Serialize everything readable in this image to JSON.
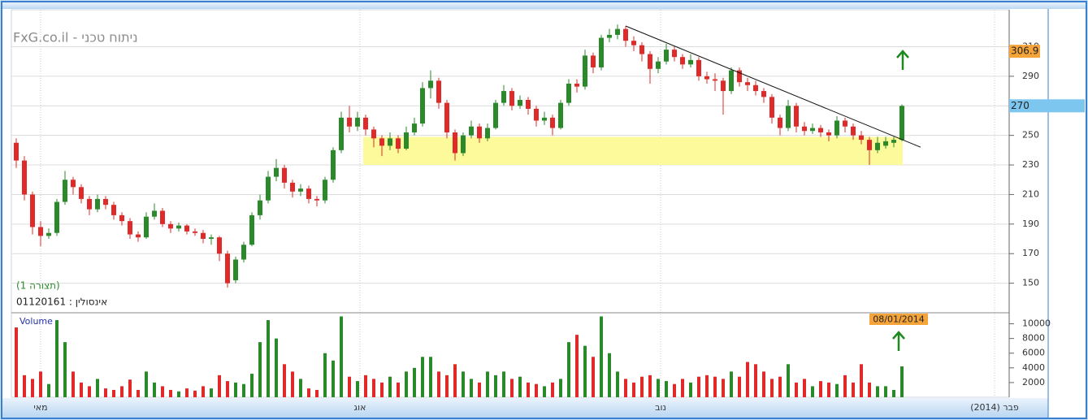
{
  "chart_data": {
    "type": "candlestick",
    "title": "FxG.co.il - ניתוח טכני",
    "subtitle": "(תצורה 1)",
    "instrument": "01120161 : אינסולין",
    "volume_label": "Volume",
    "date_tag": "08/01/2014",
    "up_color": "#2a8a2a",
    "down_color": "#e02a2a",
    "open": [
      245,
      233,
      210,
      188,
      182,
      184,
      205,
      220,
      215,
      207,
      200,
      207,
      203,
      196,
      192,
      183,
      181,
      195,
      199,
      190,
      187,
      189,
      185,
      184,
      180,
      181,
      170,
      152,
      166,
      176,
      196,
      206,
      222,
      228,
      218,
      212,
      214,
      207,
      206,
      220,
      240,
      262,
      256,
      262,
      254,
      248,
      243,
      248,
      241,
      252,
      258,
      282,
      287,
      272,
      252,
      238,
      250,
      256,
      248,
      255,
      272,
      280,
      270,
      274,
      268,
      260,
      262,
      255,
      272,
      285,
      283,
      304,
      296,
      316,
      318,
      322,
      314,
      311,
      305,
      295,
      300,
      308,
      303,
      298,
      301,
      290,
      288,
      287,
      280,
      294,
      286,
      284,
      280,
      276,
      262,
      255,
      270,
      256,
      253,
      255,
      252,
      250,
      260,
      256,
      250,
      247,
      240,
      243,
      245,
      247
    ],
    "close": [
      233,
      210,
      188,
      182,
      184,
      205,
      220,
      215,
      207,
      200,
      207,
      203,
      196,
      192,
      183,
      181,
      195,
      199,
      190,
      187,
      189,
      185,
      184,
      180,
      181,
      170,
      150,
      166,
      176,
      196,
      206,
      222,
      228,
      218,
      212,
      214,
      207,
      206,
      220,
      240,
      262,
      256,
      262,
      254,
      248,
      243,
      248,
      241,
      252,
      258,
      282,
      287,
      272,
      252,
      238,
      250,
      256,
      248,
      255,
      272,
      280,
      270,
      274,
      268,
      260,
      262,
      255,
      272,
      285,
      283,
      304,
      296,
      316,
      318,
      322,
      314,
      311,
      305,
      295,
      300,
      308,
      303,
      298,
      301,
      290,
      288,
      287,
      280,
      294,
      286,
      284,
      280,
      276,
      262,
      255,
      270,
      256,
      253,
      255,
      252,
      250,
      260,
      256,
      250,
      247,
      240,
      245,
      246,
      247,
      270
    ],
    "high": [
      248,
      236,
      212,
      192,
      187,
      207,
      226,
      222,
      217,
      209,
      210,
      209,
      205,
      198,
      194,
      185,
      198,
      204,
      201,
      192,
      191,
      190,
      187,
      186,
      183,
      182,
      172,
      168,
      178,
      198,
      210,
      226,
      234,
      230,
      220,
      217,
      216,
      209,
      222,
      242,
      266,
      270,
      266,
      264,
      256,
      250,
      252,
      250,
      256,
      262,
      286,
      294,
      289,
      274,
      254,
      252,
      260,
      258,
      258,
      274,
      284,
      282,
      277,
      276,
      270,
      266,
      264,
      274,
      288,
      288,
      308,
      306,
      318,
      322,
      325,
      324,
      317,
      313,
      307,
      303,
      312,
      310,
      305,
      305,
      303,
      293,
      292,
      289,
      296,
      296,
      289,
      287,
      282,
      278,
      264,
      274,
      272,
      259,
      258,
      257,
      254,
      263,
      262,
      258,
      253,
      249,
      249,
      249,
      249,
      271
    ],
    "low": [
      228,
      206,
      183,
      175,
      180,
      182,
      203,
      210,
      204,
      196,
      198,
      200,
      193,
      189,
      180,
      178,
      180,
      193,
      188,
      184,
      185,
      183,
      182,
      177,
      176,
      165,
      147,
      150,
      164,
      175,
      193,
      204,
      219,
      214,
      208,
      209,
      204,
      202,
      204,
      218,
      238,
      252,
      253,
      250,
      242,
      236,
      240,
      238,
      240,
      250,
      256,
      275,
      268,
      248,
      233,
      236,
      248,
      245,
      246,
      254,
      270,
      267,
      268,
      264,
      256,
      257,
      250,
      254,
      270,
      279,
      281,
      292,
      294,
      313,
      315,
      310,
      307,
      300,
      285,
      292,
      298,
      300,
      295,
      296,
      287,
      285,
      280,
      264,
      278,
      283,
      280,
      277,
      272,
      258,
      250,
      253,
      252,
      250,
      251,
      249,
      246,
      248,
      252,
      247,
      244,
      230,
      238,
      241,
      242,
      246
    ],
    "volume": [
      9500,
      3000,
      2500,
      3500,
      1800,
      10500,
      7500,
      3500,
      2000,
      1500,
      2500,
      1200,
      1000,
      1500,
      2400,
      1000,
      3500,
      2000,
      1500,
      1000,
      800,
      1200,
      900,
      1500,
      1200,
      3000,
      2200,
      2000,
      1800,
      3200,
      7500,
      10500,
      8000,
      4500,
      3500,
      2500,
      1200,
      1000,
      6000,
      5000,
      11000,
      2800,
      2200,
      3000,
      2500,
      2000,
      2800,
      2000,
      3500,
      4000,
      5500,
      5500,
      3500,
      3000,
      4500,
      3500,
      2500,
      2000,
      3500,
      3000,
      3500,
      2500,
      2800,
      2000,
      1800,
      1500,
      2000,
      2500,
      7500,
      8500,
      7000,
      5500,
      11000,
      6000,
      3500,
      2500,
      2000,
      2800,
      3000,
      2500,
      2200,
      1800,
      2500,
      2000,
      2800,
      3000,
      2800,
      2500,
      3500,
      2800,
      4800,
      4500,
      3500,
      2500,
      2800,
      4500,
      2000,
      2500,
      1500,
      2200,
      2000,
      1800,
      3000,
      2000,
      4500,
      2000,
      1500,
      1500,
      1000,
      4200
    ],
    "ylim": [
      130,
      335
    ],
    "yticks": [
      150,
      170,
      190,
      210,
      230,
      250,
      270,
      290,
      310
    ],
    "vlim": [
      0,
      11500
    ],
    "vticks": [
      2000,
      4000,
      6000,
      8000,
      10000
    ],
    "grid": true,
    "support_zone": {
      "ylim": [
        230,
        249
      ],
      "from": 43,
      "to": 109,
      "color": "#fdfa9c"
    },
    "trendline": [
      [
        75,
        324
      ],
      [
        111.3,
        242
      ]
    ],
    "price_tags": [
      {
        "value": 306.9,
        "color": "#f5a43a"
      },
      {
        "value": 270,
        "color": "#7cc6f0"
      }
    ],
    "x_labels": [
      {
        "label": "מאי",
        "index": 3
      },
      {
        "label": "אוג",
        "index": 42.3
      },
      {
        "label": "נוב",
        "index": 79.3
      },
      {
        "label": "(2014) פבר",
        "index": 120.4
      }
    ]
  }
}
